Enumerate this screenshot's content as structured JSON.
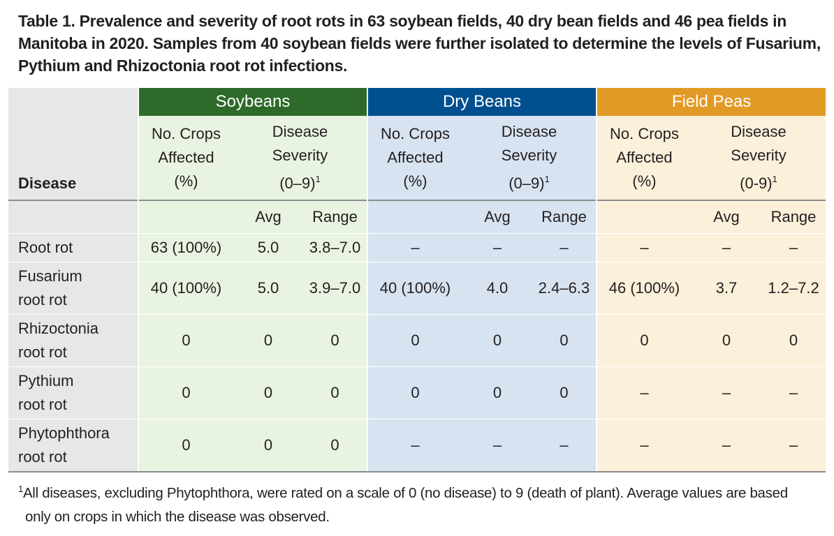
{
  "caption": "Table 1. Prevalence and severity of root rots in 63 soybean fields, 40 dry bean fields and 46 pea fields in Manitoba in 2020. Samples from 40 soybean fields were further isolated to determine the levels of Fusarium, Pythium and Rhizoctonia root rot infections.",
  "header": {
    "disease": "Disease",
    "groups": [
      "Soybeans",
      "Dry Beans",
      "Field Peas"
    ],
    "affected_line1": "No. Crops",
    "affected_line2": "Affected",
    "affected_line3": "(%)",
    "severity_line1": "Disease",
    "severity_line2": "Severity",
    "severity_scale": [
      "(0–9)",
      "(0–9)",
      "(0-9)"
    ],
    "severity_mark": "1",
    "avg": "Avg",
    "range": "Range"
  },
  "rows": [
    {
      "name_l1": "Root rot",
      "name_l2": "",
      "cells": [
        "63 (100%)",
        "5.0",
        "3.8–7.0",
        "–",
        "–",
        "–",
        "–",
        "–",
        "–"
      ]
    },
    {
      "name_l1": "Fusarium",
      "name_l2": "root rot",
      "cells": [
        "40 (100%)",
        "5.0",
        "3.9–7.0",
        "40 (100%)",
        "4.0",
        "2.4–6.3",
        "46 (100%)",
        "3.7",
        "1.2–7.2"
      ]
    },
    {
      "name_l1": "Rhizoctonia",
      "name_l2": "root rot",
      "cells": [
        "0",
        "0",
        "0",
        "0",
        "0",
        "0",
        "0",
        "0",
        "0"
      ]
    },
    {
      "name_l1": "Pythium",
      "name_l2": "root rot",
      "cells": [
        "0",
        "0",
        "0",
        "0",
        "0",
        "0",
        "–",
        "–",
        "–"
      ]
    },
    {
      "name_l1": "Phytophthora",
      "name_l2": "root rot",
      "cells": [
        "0",
        "0",
        "0",
        "–",
        "–",
        "–",
        "–",
        "–",
        "–"
      ]
    }
  ],
  "colors": {
    "soybeans": "#2e6b2a",
    "dry_beans": "#004f8f",
    "field_peas": "#e29a26"
  },
  "footnote": {
    "mark": "1",
    "line1": "All diseases, excluding Phytophthora, were rated on a scale of 0 (no disease) to 9 (death of plant). Average values are based",
    "line2": "only on crops in which the disease was observed."
  }
}
